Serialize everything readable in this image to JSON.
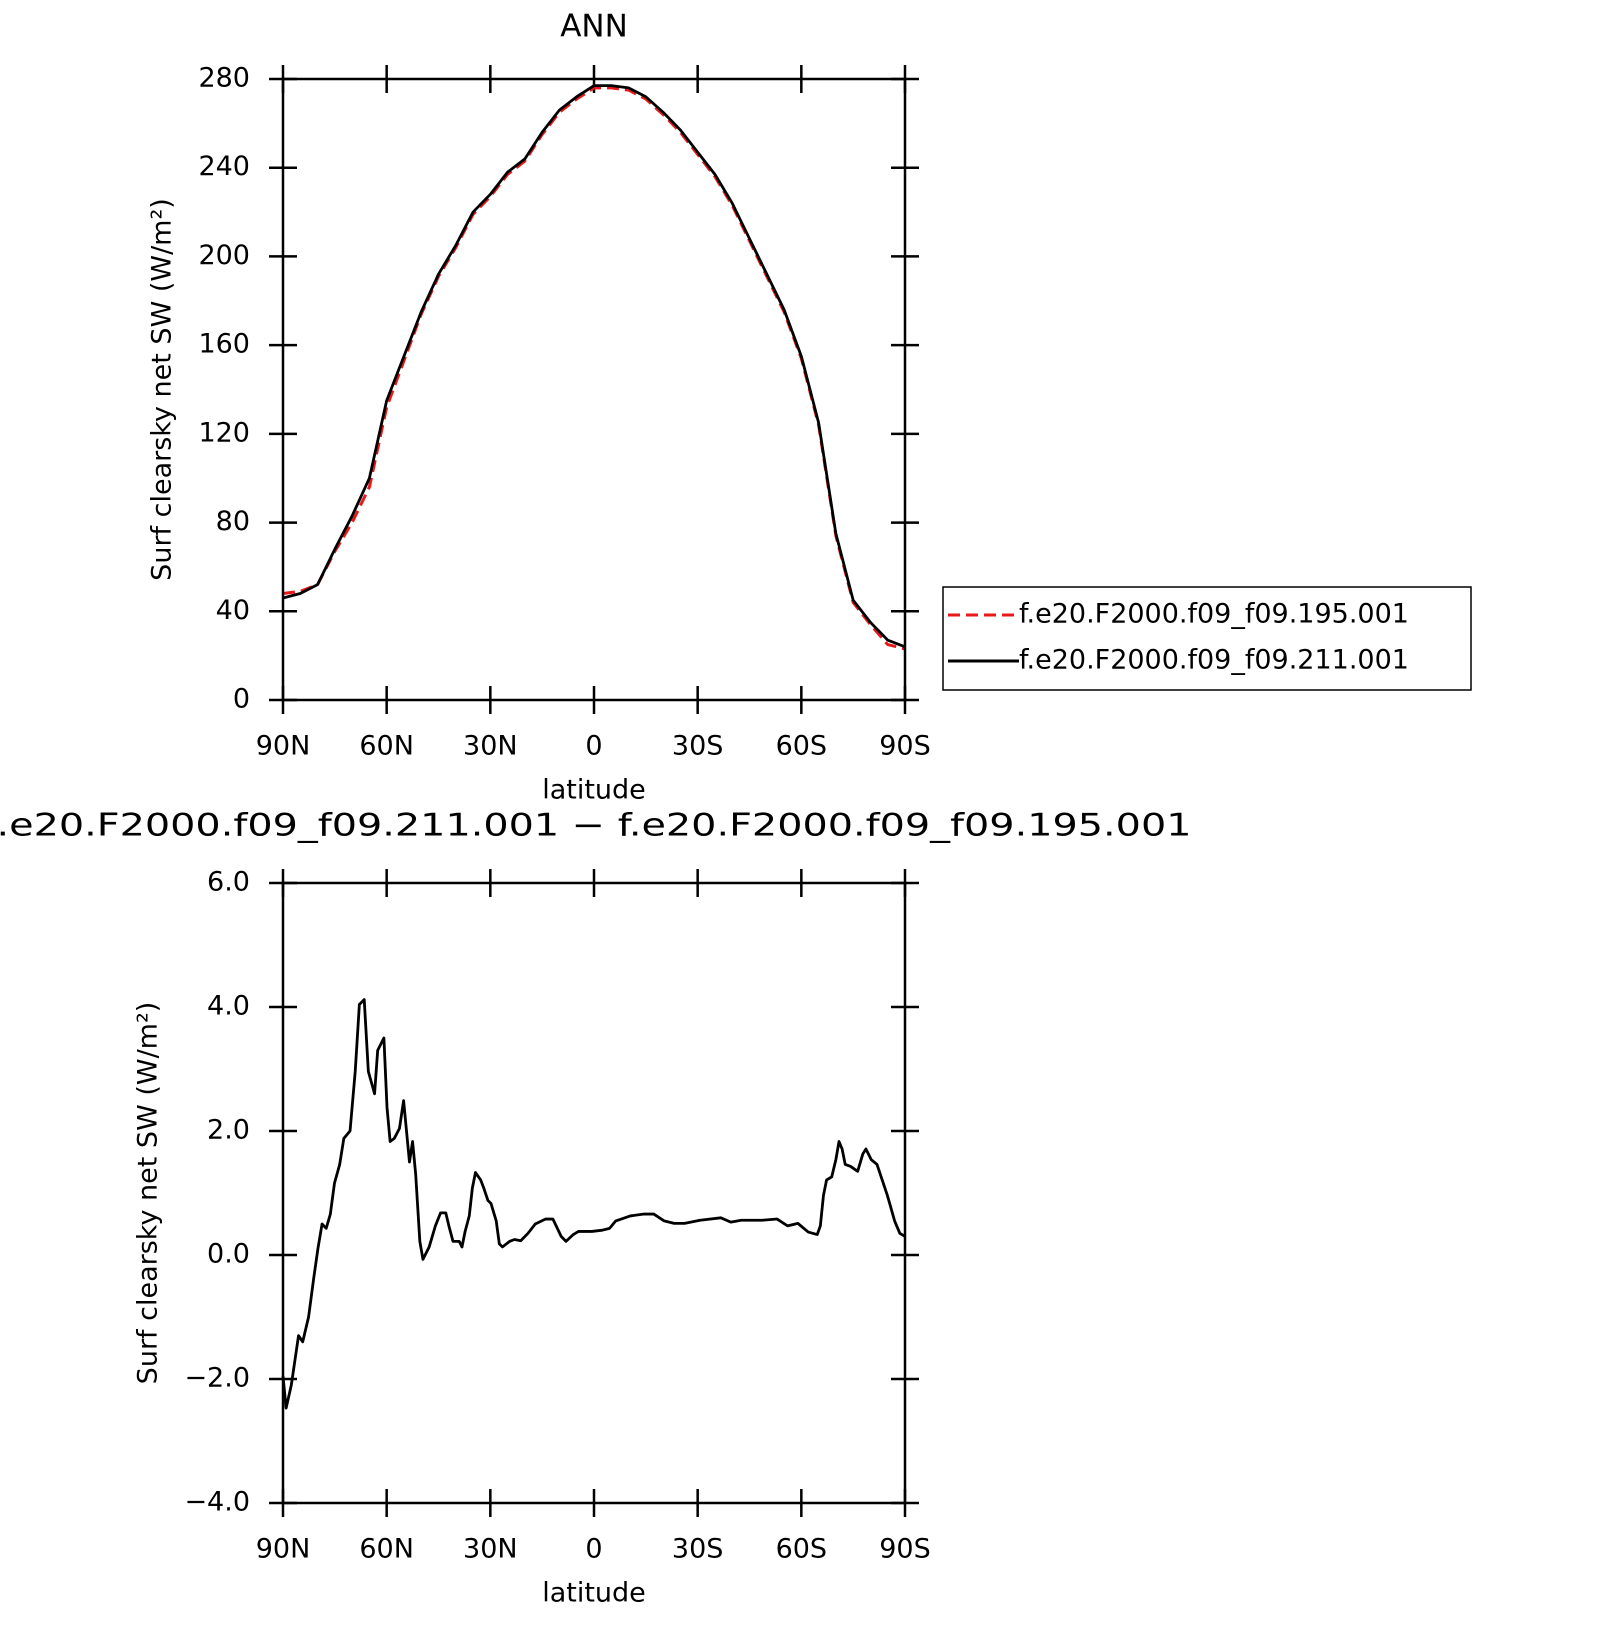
{
  "chart_data": [
    {
      "type": "line",
      "title": "ANN",
      "xlabel": "latitude",
      "ylabel": "Surf clearsky net SW (W/m²)",
      "x": [
        90,
        85,
        80,
        75,
        70,
        65,
        60,
        55,
        50,
        45,
        40,
        35,
        30,
        25,
        20,
        15,
        10,
        5,
        0,
        -5,
        -10,
        -15,
        -20,
        -25,
        -30,
        -35,
        -40,
        -45,
        -50,
        -55,
        -60,
        -65,
        -70,
        -75,
        -80,
        -85,
        -90
      ],
      "xlim": [
        90,
        -90
      ],
      "xticks": [
        {
          "value": 90,
          "label": "90N"
        },
        {
          "value": 60,
          "label": "60N"
        },
        {
          "value": 30,
          "label": "30N"
        },
        0,
        {
          "value": -30,
          "label": "30S"
        },
        {
          "value": -60,
          "label": "60S"
        },
        {
          "value": -90,
          "label": "90S"
        }
      ],
      "ylim": [
        0,
        280
      ],
      "yticks": [
        0,
        40,
        80,
        120,
        160,
        200,
        240,
        280
      ],
      "legend": "outside-right",
      "series": [
        {
          "name": "f.e20.F2000.f09_f09.195.001",
          "color": "#e8191a",
          "dashed": true,
          "values": [
            48,
            49,
            52,
            67,
            80,
            96,
            132,
            153,
            174,
            191,
            204,
            219,
            227,
            237,
            243,
            255,
            265,
            271,
            276,
            276,
            275,
            271,
            264,
            256,
            246,
            236,
            223,
            207,
            191,
            175,
            154,
            124,
            74,
            44,
            34,
            25,
            23
          ]
        },
        {
          "name": "f.e20.F2000.f09_f09.211.001",
          "color": "#000000",
          "dashed": false,
          "values": [
            46,
            48,
            52,
            68,
            83,
            100,
            135,
            155,
            175,
            192,
            205,
            220,
            228,
            238,
            244,
            256,
            266,
            272,
            277,
            277,
            276,
            272,
            265,
            257,
            247,
            237,
            224,
            208,
            192,
            176,
            155,
            125,
            75,
            45,
            35,
            27,
            24
          ]
        }
      ]
    },
    {
      "type": "line",
      "title": ".e20.F2000.f09_f09.211.001 − f.e20.F2000.f09_f09.195.001",
      "xlabel": "latitude",
      "ylabel": "Surf clearsky net SW (W/m²)",
      "x": [
        90,
        89.1,
        87.6,
        85.5,
        84.3,
        82.6,
        81.1,
        79.9,
        78.7,
        77.5,
        76.3,
        75.1,
        73.6,
        72.4,
        70.6,
        69.1,
        67.9,
        66.5,
        65.3,
        63.5,
        62.6,
        60.8,
        59.9,
        59.0,
        57.8,
        56.3,
        55.1,
        53.9,
        53.4,
        52.5,
        51.6,
        50.4,
        49.5,
        47.7,
        45.9,
        44.4,
        42.9,
        42.0,
        40.8,
        39.0,
        38.2,
        37.3,
        36.1,
        35.2,
        34.3,
        32.8,
        31.9,
        30.7,
        29.8,
        28.3,
        27.4,
        26.5,
        24.4,
        23.0,
        21.2,
        19.1,
        17.0,
        14.0,
        11.9,
        9.5,
        8.1,
        6.0,
        4.5,
        0.6,
        -2.4,
        -4.5,
        -6.3,
        -10.5,
        -14.3,
        -17.3,
        -20.3,
        -23.2,
        -26.2,
        -30.7,
        -36.7,
        -39.6,
        -42.6,
        -48.6,
        -53.0,
        -56.0,
        -59.0,
        -62.0,
        -64.6,
        -65.5,
        -66.4,
        -67.3,
        -68.8,
        -70.0,
        -70.9,
        -71.8,
        -72.7,
        -74.2,
        -76.3,
        -77.8,
        -78.7,
        -80.2,
        -81.9,
        -83.4,
        -84.9,
        -87.0,
        -88.5,
        -90
      ],
      "xlim": [
        90,
        -90
      ],
      "xticks": [
        {
          "value": 90,
          "label": "90N"
        },
        {
          "value": 60,
          "label": "60N"
        },
        {
          "value": 30,
          "label": "30N"
        },
        0,
        {
          "value": -30,
          "label": "30S"
        },
        {
          "value": -60,
          "label": "60S"
        },
        {
          "value": -90,
          "label": "90S"
        }
      ],
      "ylim": [
        -4,
        6
      ],
      "yticks": [
        {
          "value": -4,
          "label": "−4.0"
        },
        {
          "value": -2,
          "label": "−2.0"
        },
        {
          "value": 0,
          "label": "0.0"
        },
        {
          "value": 2,
          "label": "2.0"
        },
        {
          "value": 4,
          "label": "4.0"
        },
        {
          "value": 6,
          "label": "6.0"
        }
      ],
      "series": [
        {
          "color": "#000000",
          "dashed": false,
          "values": [
            -1.95,
            -2.47,
            -2.1,
            -1.3,
            -1.4,
            -1.0,
            -0.37,
            0.1,
            0.5,
            0.43,
            0.66,
            1.16,
            1.46,
            1.88,
            2.0,
            2.96,
            4.04,
            4.12,
            2.96,
            2.6,
            3.3,
            3.5,
            2.38,
            1.83,
            1.88,
            2.04,
            2.49,
            1.79,
            1.5,
            1.83,
            1.3,
            0.22,
            -0.07,
            0.13,
            0.47,
            0.68,
            0.68,
            0.47,
            0.22,
            0.22,
            0.13,
            0.38,
            0.63,
            1.08,
            1.33,
            1.21,
            1.08,
            0.88,
            0.83,
            0.55,
            0.18,
            0.13,
            0.22,
            0.25,
            0.23,
            0.35,
            0.5,
            0.58,
            0.58,
            0.3,
            0.22,
            0.33,
            0.38,
            0.38,
            0.4,
            0.43,
            0.55,
            0.63,
            0.66,
            0.66,
            0.55,
            0.51,
            0.51,
            0.56,
            0.6,
            0.53,
            0.56,
            0.56,
            0.58,
            0.47,
            0.51,
            0.37,
            0.33,
            0.47,
            0.96,
            1.21,
            1.26,
            1.54,
            1.83,
            1.71,
            1.46,
            1.43,
            1.35,
            1.63,
            1.71,
            1.54,
            1.46,
            1.21,
            0.96,
            0.55,
            0.35,
            0.3
          ]
        }
      ]
    }
  ]
}
